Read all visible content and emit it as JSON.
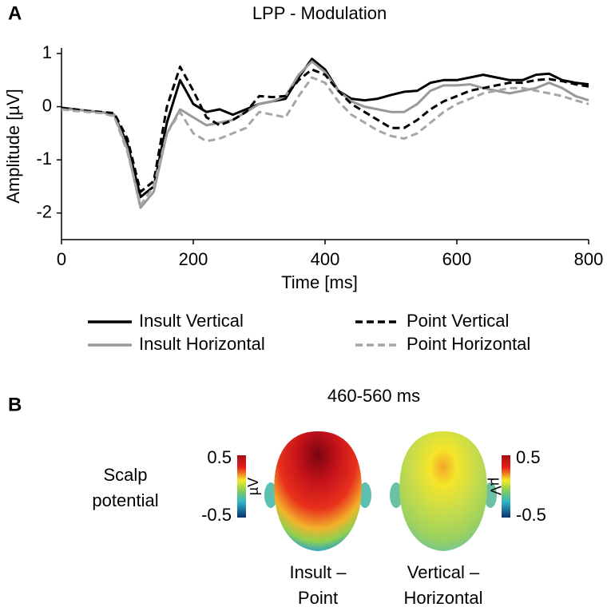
{
  "panel_labels": [
    "A",
    "B"
  ],
  "chart_data": {
    "type": "line",
    "title": "LPP - Modulation",
    "xlabel": "Time [ms]",
    "ylabel": "Amplitude [µV]",
    "x": [
      0,
      20,
      40,
      60,
      80,
      100,
      120,
      140,
      160,
      180,
      200,
      220,
      240,
      260,
      280,
      300,
      320,
      340,
      360,
      380,
      400,
      420,
      440,
      460,
      480,
      500,
      520,
      540,
      560,
      580,
      600,
      620,
      640,
      660,
      680,
      700,
      720,
      740,
      760,
      780,
      800
    ],
    "series": [
      {
        "name": "Insult Vertical",
        "color": "#000000",
        "style": "solid",
        "values": [
          -0.02,
          -0.05,
          -0.08,
          -0.1,
          -0.15,
          -0.7,
          -1.7,
          -1.5,
          -0.3,
          0.5,
          0.05,
          -0.1,
          -0.05,
          -0.15,
          -0.05,
          0.05,
          0.1,
          0.15,
          0.55,
          0.9,
          0.7,
          0.3,
          0.15,
          0.12,
          0.15,
          0.22,
          0.28,
          0.3,
          0.45,
          0.5,
          0.5,
          0.55,
          0.6,
          0.55,
          0.5,
          0.5,
          0.6,
          0.62,
          0.5,
          0.45,
          0.42
        ]
      },
      {
        "name": "Insult Horizontal",
        "color": "#999999",
        "style": "solid",
        "values": [
          -0.05,
          -0.05,
          -0.08,
          -0.1,
          -0.15,
          -0.8,
          -1.9,
          -1.6,
          -0.5,
          -0.05,
          -0.2,
          -0.35,
          -0.3,
          -0.25,
          -0.1,
          0.05,
          0.1,
          0.2,
          0.6,
          0.85,
          0.65,
          0.3,
          0.1,
          0.0,
          -0.05,
          -0.1,
          -0.1,
          0.05,
          0.3,
          0.4,
          0.4,
          0.42,
          0.35,
          0.3,
          0.25,
          0.3,
          0.35,
          0.45,
          0.35,
          0.2,
          0.12
        ]
      },
      {
        "name": "Point Vertical",
        "color": "#000000",
        "style": "dashed",
        "values": [
          -0.05,
          -0.05,
          -0.08,
          -0.1,
          -0.12,
          -0.6,
          -1.6,
          -1.4,
          0.0,
          0.75,
          0.3,
          -0.2,
          -0.35,
          -0.25,
          -0.1,
          0.2,
          0.18,
          0.2,
          0.5,
          0.7,
          0.6,
          0.3,
          0.05,
          -0.1,
          -0.25,
          -0.4,
          -0.4,
          -0.25,
          -0.05,
          0.1,
          0.2,
          0.3,
          0.35,
          0.4,
          0.45,
          0.45,
          0.5,
          0.52,
          0.48,
          0.42,
          0.38
        ]
      },
      {
        "name": "Point Horizontal",
        "color": "#a6a6a6",
        "style": "dashed",
        "values": [
          -0.05,
          -0.08,
          -0.1,
          -0.12,
          -0.18,
          -0.85,
          -1.85,
          -1.5,
          -0.5,
          -0.1,
          -0.5,
          -0.65,
          -0.6,
          -0.5,
          -0.4,
          -0.1,
          -0.15,
          -0.2,
          0.2,
          0.55,
          0.45,
          0.1,
          -0.15,
          -0.3,
          -0.45,
          -0.55,
          -0.6,
          -0.5,
          -0.3,
          -0.1,
          0.05,
          0.15,
          0.25,
          0.3,
          0.35,
          0.35,
          0.3,
          0.25,
          0.2,
          0.12,
          0.05
        ]
      }
    ],
    "xlim": [
      0,
      800
    ],
    "xticks": [
      0,
      200,
      400,
      600,
      800
    ],
    "ylim": [
      -2.5,
      1
    ],
    "yticks": [
      -2,
      -1,
      0,
      1
    ],
    "grid": false
  },
  "panel_b": {
    "title": "460-560 ms",
    "row_label": [
      "Scalp",
      "potential"
    ],
    "colorbar": {
      "label": "µV",
      "ticks": [
        0.5,
        -0.5
      ]
    },
    "maps": [
      [
        "Insult –",
        "Point"
      ],
      [
        "Vertical –",
        "Horizontal"
      ]
    ]
  }
}
